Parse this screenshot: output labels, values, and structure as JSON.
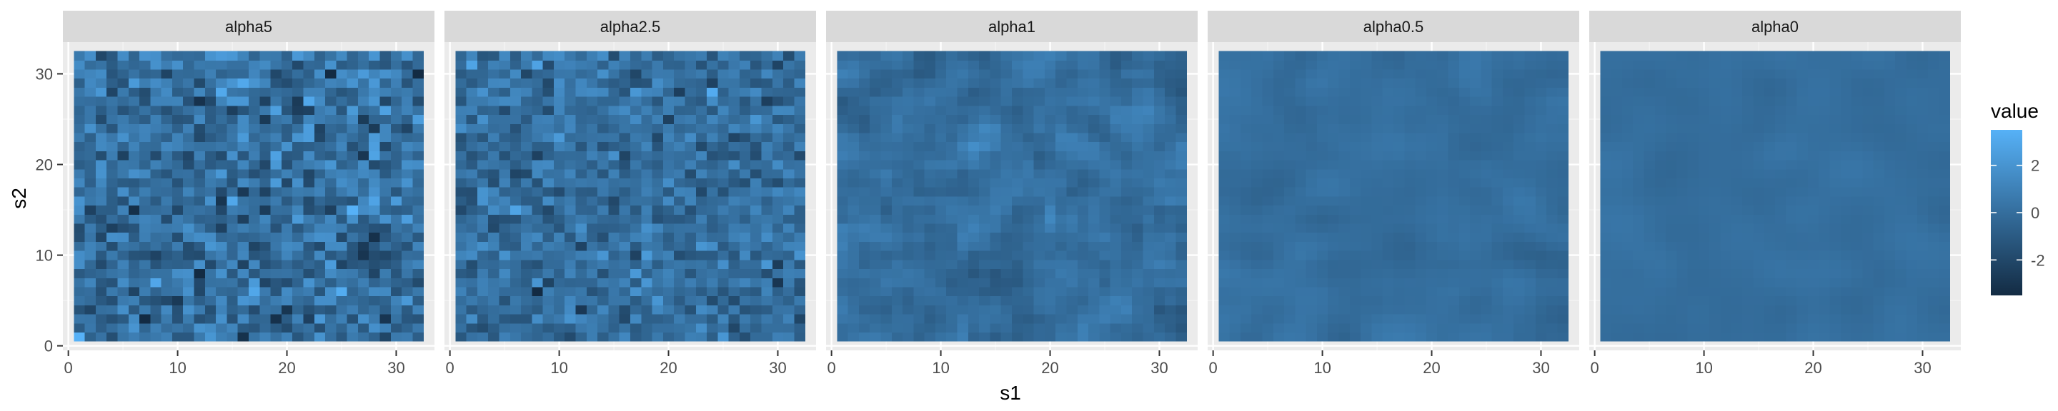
{
  "chart_data": {
    "type": "heatmap",
    "facets": [
      {
        "label": "alpha5",
        "sd": 1.25,
        "smooth": 0
      },
      {
        "label": "alpha2.5",
        "sd": 0.95,
        "smooth": 0
      },
      {
        "label": "alpha1",
        "sd": 0.45,
        "smooth": 1
      },
      {
        "label": "alpha0.5",
        "sd": 0.22,
        "smooth": 2
      },
      {
        "label": "alpha0",
        "sd": 0.14,
        "smooth": 3
      }
    ],
    "grid_size": 32,
    "x": {
      "label": "s1",
      "ticks": [
        0,
        10,
        20,
        30
      ],
      "range": [
        -0.5,
        33.5
      ]
    },
    "y": {
      "label": "s2",
      "ticks": [
        0,
        10,
        20,
        30
      ],
      "range": [
        -0.5,
        33.5
      ]
    },
    "legend": {
      "title": "value",
      "ticks": [
        2,
        0,
        -2
      ],
      "range": [
        -3.5,
        3.5
      ],
      "position": "right",
      "colors": {
        "low": "#132B43",
        "high": "#56B1F7"
      }
    },
    "grid": true
  }
}
